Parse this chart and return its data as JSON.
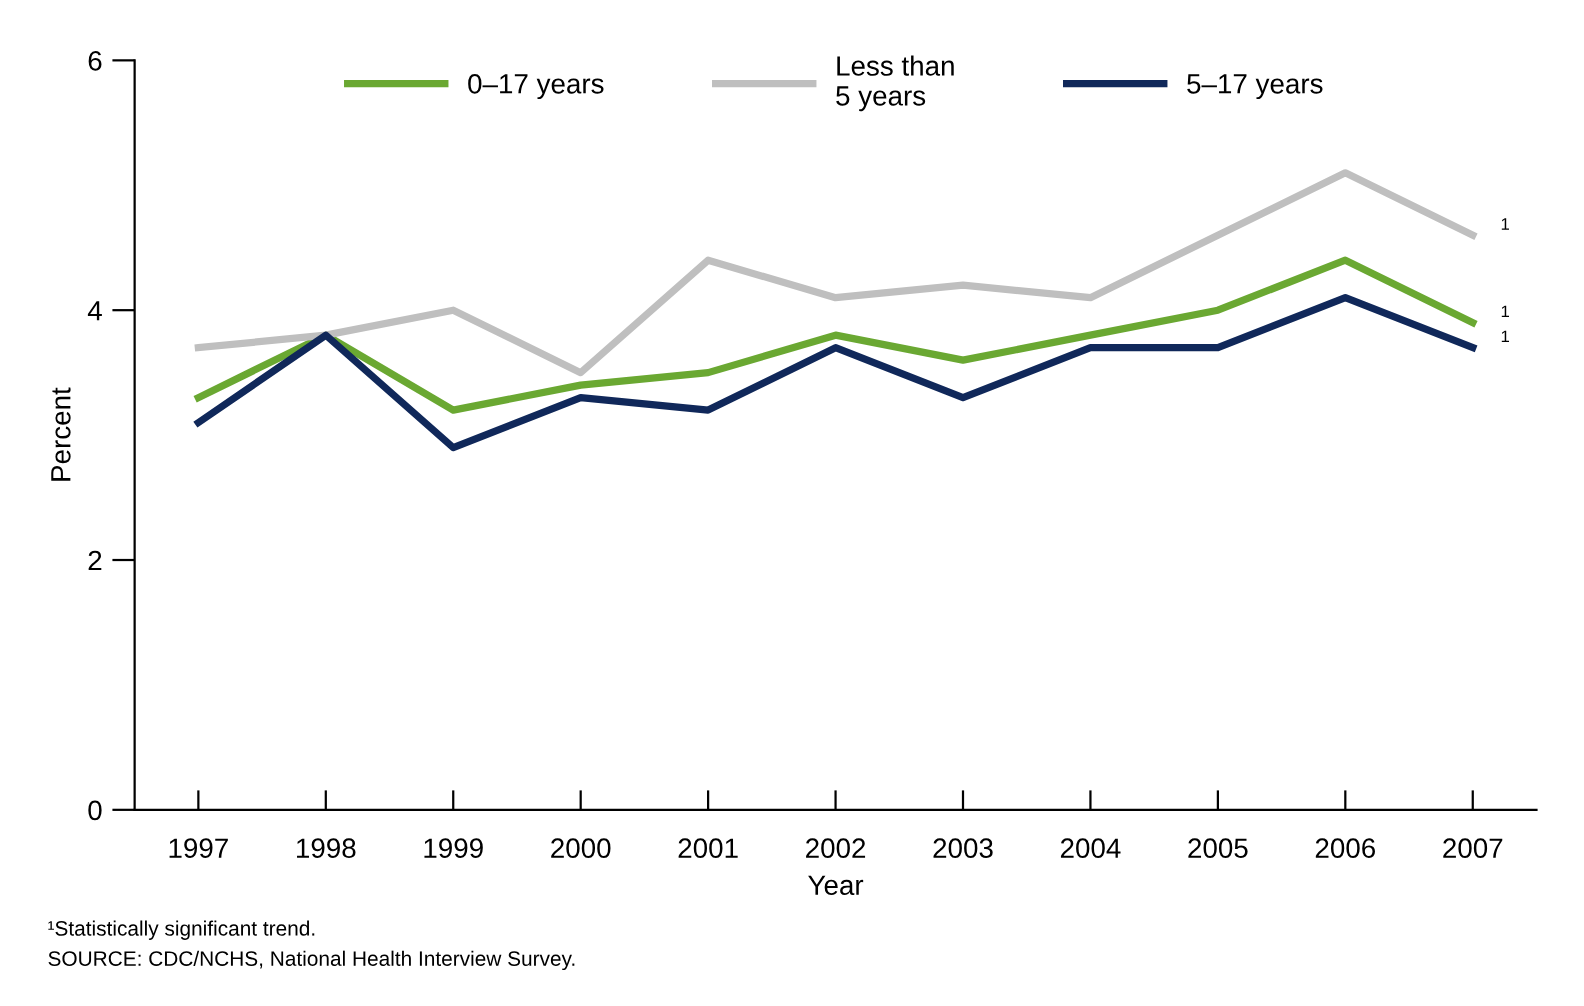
{
  "chart_data": {
    "type": "line",
    "xlabel": "Year",
    "ylabel": "Percent",
    "categories": [
      "1997",
      "1998",
      "1999",
      "2000",
      "2001",
      "2002",
      "2003",
      "2004",
      "2005",
      "2006",
      "2007"
    ],
    "series": [
      {
        "name": "0–17 years",
        "color": "#6aa832",
        "values": [
          3.3,
          3.8,
          3.2,
          3.4,
          3.5,
          3.8,
          3.6,
          3.8,
          4.0,
          4.4,
          3.9
        ]
      },
      {
        "name": "Less than\n5 years",
        "color": "#bfbfbf",
        "values": [
          3.7,
          3.8,
          4.0,
          3.5,
          4.4,
          4.1,
          4.2,
          4.1,
          4.6,
          5.1,
          4.6
        ]
      },
      {
        "name": "5–17 years",
        "color": "#10285a",
        "values": [
          3.1,
          3.8,
          2.9,
          3.3,
          3.2,
          3.7,
          3.3,
          3.7,
          3.7,
          4.1,
          3.7
        ]
      }
    ],
    "ylim": [
      0,
      6
    ],
    "yticks": [
      0,
      2,
      4,
      6
    ],
    "grid": false,
    "legend": "top",
    "marker": "none",
    "line_style": "solid",
    "annotations": [
      {
        "text": "1",
        "x": "2007",
        "y": 4.6
      },
      {
        "text": "1",
        "x": "2007",
        "y": 3.9
      },
      {
        "text": "1",
        "x": "2007",
        "y": 3.7
      },
      "¹Statistically significant trend.",
      "SOURCE: CDC/NCHS, National Health Interview Survey."
    ]
  }
}
